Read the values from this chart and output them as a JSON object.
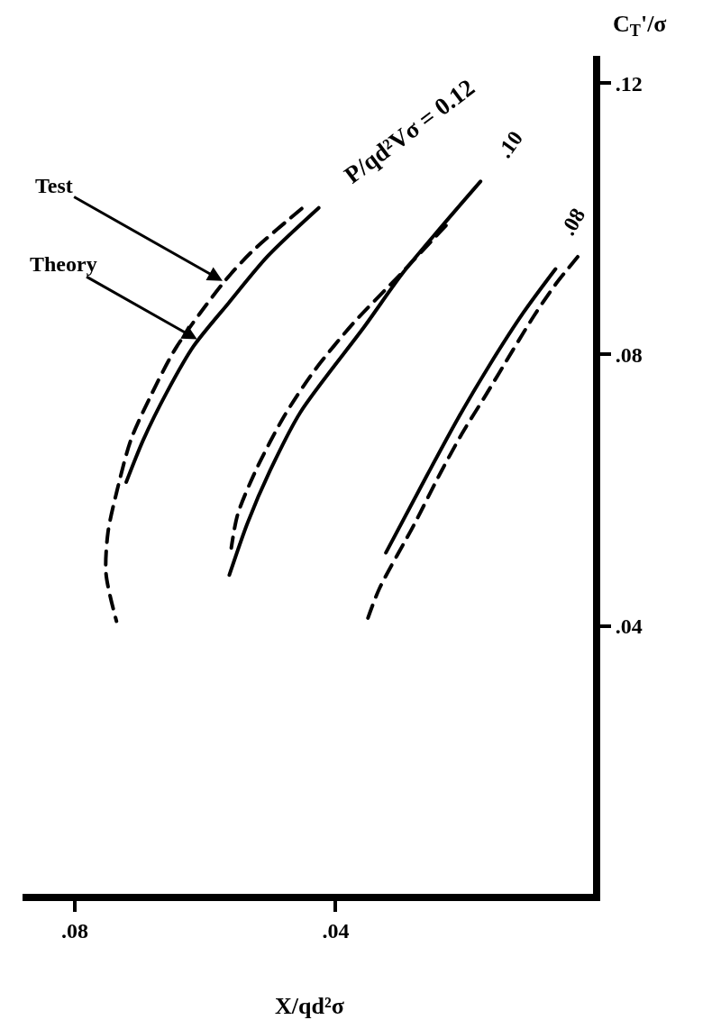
{
  "chart_data": {
    "type": "line",
    "xlabel": "X/qd²σ",
    "ylabel": "C$_{T}$'/σ",
    "xlim": [
      0.088,
      0
    ],
    "ylim": [
      0,
      0.124
    ],
    "xticks": [
      {
        "value": 0.08,
        "label": ".08"
      },
      {
        "value": 0.04,
        "label": ".04"
      }
    ],
    "yticks": [
      {
        "value": 0.04,
        "label": ".04"
      },
      {
        "value": 0.08,
        "label": ".08"
      },
      {
        "value": 0.12,
        "label": ".12"
      }
    ],
    "series": [
      {
        "color": "#000000",
        "line_style": "dashed",
        "x": [
          0.0452,
          0.0529,
          0.0571,
          0.0644,
          0.0685,
          0.0714,
          0.0735,
          0.0749,
          0.0752,
          0.0736
        ],
        "values": [
          0.1015,
          0.0951,
          0.0907,
          0.0811,
          0.0736,
          0.0674,
          0.06,
          0.0538,
          0.0477,
          0.0407
        ]
      },
      {
        "color": "#000000",
        "line_style": "solid",
        "x": [
          0.0426,
          0.0504,
          0.0564,
          0.0618,
          0.0659,
          0.0695,
          0.0721
        ],
        "values": [
          0.1016,
          0.0945,
          0.0876,
          0.0812,
          0.0744,
          0.0674,
          0.0612
        ]
      },
      {
        "color": "#000000",
        "line_style": "dashed",
        "x": [
          0.0231,
          0.03,
          0.0373,
          0.0432,
          0.0479,
          0.0521,
          0.055,
          0.056
        ],
        "values": [
          0.099,
          0.0919,
          0.0846,
          0.0777,
          0.0709,
          0.0632,
          0.0565,
          0.0515
        ]
      },
      {
        "color": "#000000",
        "line_style": "solid",
        "x": [
          0.0178,
          0.0239,
          0.0298,
          0.0356,
          0.0454,
          0.0501,
          0.0535,
          0.0563
        ],
        "values": [
          0.1055,
          0.0987,
          0.0919,
          0.0841,
          0.0715,
          0.0628,
          0.0552,
          0.0475
        ]
      },
      {
        "color": "#000000",
        "line_style": "dashed",
        "x": [
          0.0029,
          0.0064,
          0.0096,
          0.0128,
          0.017,
          0.0206,
          0.0238,
          0.028,
          0.0333,
          0.0353
        ],
        "values": [
          0.0944,
          0.0902,
          0.0857,
          0.0807,
          0.074,
          0.0684,
          0.0628,
          0.0549,
          0.0455,
          0.0405
        ]
      },
      {
        "color": "#000000",
        "line_style": "solid",
        "x": [
          0.0063,
          0.0112,
          0.0165,
          0.0213,
          0.026,
          0.0323
        ],
        "values": [
          0.0926,
          0.0862,
          0.0783,
          0.0705,
          0.0622,
          0.0508
        ]
      }
    ],
    "annotations": [
      {
        "text": "Test",
        "x": 0.0571,
        "y": 0.0907
      },
      {
        "text": "Theory",
        "x": 0.061,
        "y": 0.0821
      },
      {
        "text": "P/qd²Vσ = 0.12",
        "x": 0.0426,
        "y": 0.1016
      },
      {
        "text": ".10",
        "x": 0.0178,
        "y": 0.1055
      },
      {
        "text": ".08",
        "x": 0.0063,
        "y": 0.0926
      }
    ]
  }
}
